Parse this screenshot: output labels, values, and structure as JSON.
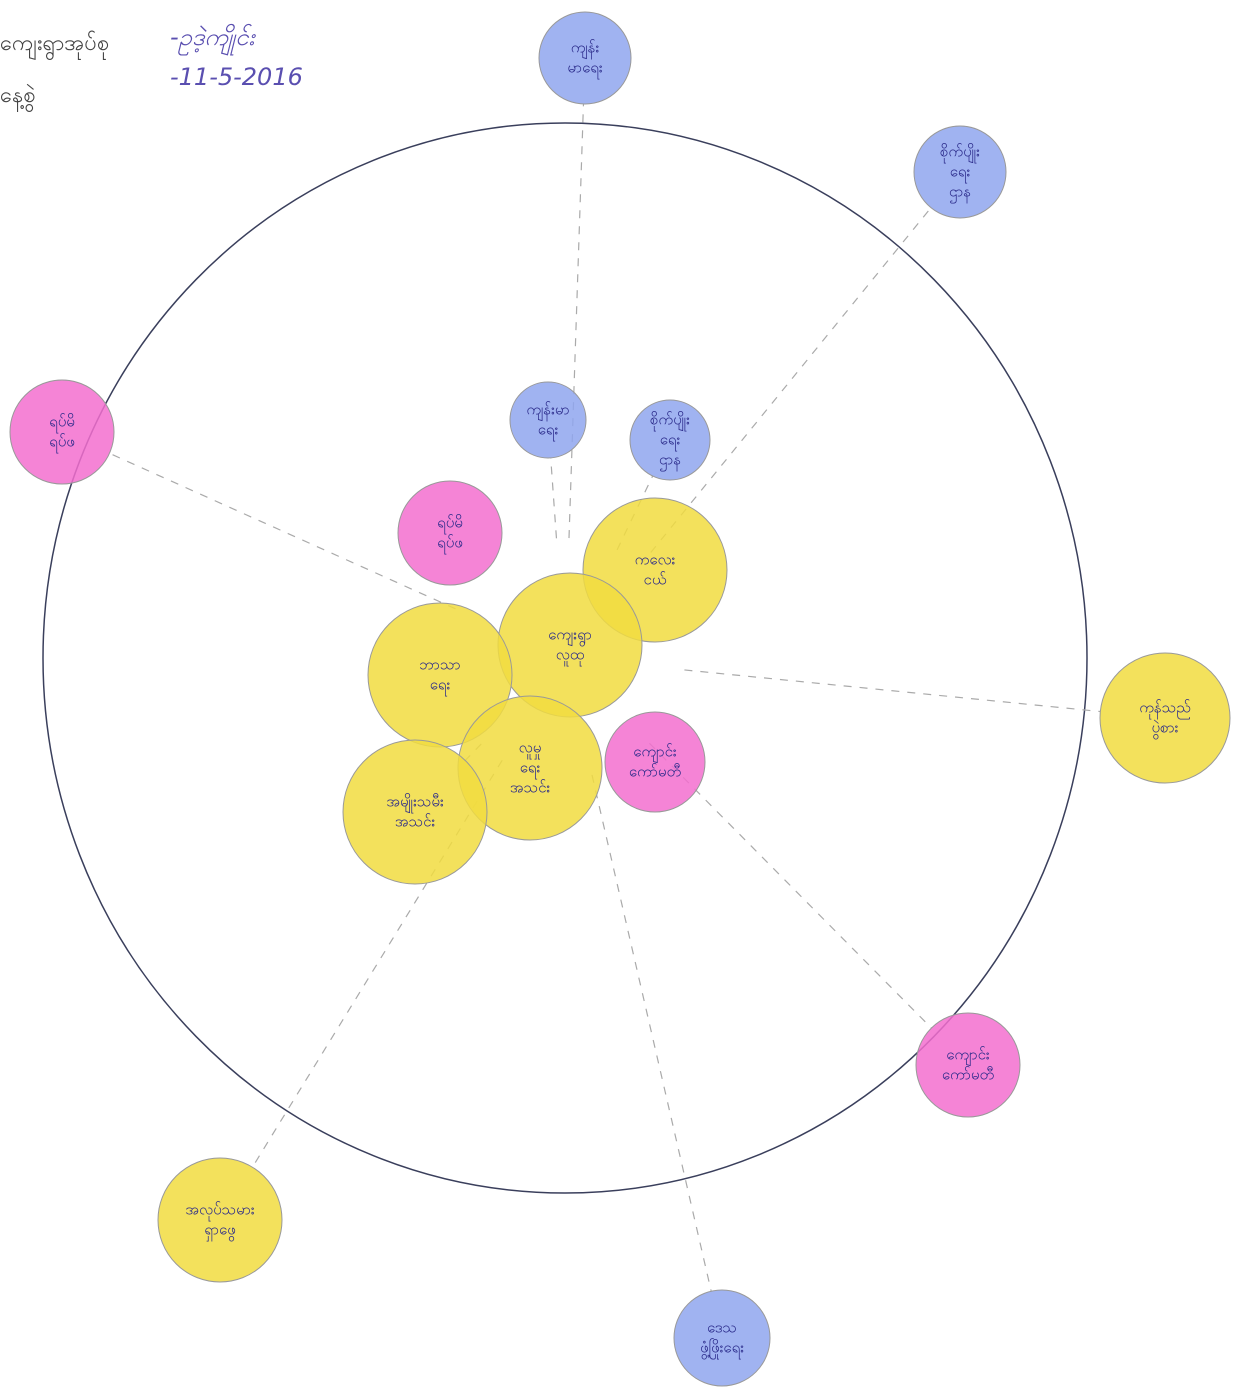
{
  "header": {
    "village_tract_label": "ကျေးရွာအုပ်စု",
    "village_tract_value": "-ဥဒဲ့ကျိုင်း",
    "date_label": "နေ့စွဲ",
    "date_value": "-11-5-2016"
  },
  "nodes": [
    {
      "label": "ကျန်း မာရေး",
      "color": "blue"
    },
    {
      "label": "စိုက်ပျိုး ရေး ဌာန",
      "color": "blue"
    },
    {
      "label": "ရပ်မိ ရပ်ဖ",
      "color": "pink"
    },
    {
      "label": "ကျန်းမာ ရေး",
      "color": "blue"
    },
    {
      "label": "စိုက်ပျိုး ရေး ဌာန",
      "color": "blue"
    },
    {
      "label": "ရပ်မိ ရပ်ဖ",
      "color": "pink"
    },
    {
      "label": "ကလေး ငယ်",
      "color": "yellow"
    },
    {
      "label": "ကျေးရွာ လူထု",
      "color": "yellow"
    },
    {
      "label": "ဘာသာ ရေး",
      "color": "yellow"
    },
    {
      "label": "လူမှု ရေး အသင်း",
      "color": "yellow"
    },
    {
      "label": "ကျောင်း ကော်မတီ",
      "color": "pink"
    },
    {
      "label": "အမျိုးသမီး အသင်း",
      "color": "yellow"
    },
    {
      "label": "ကုန်သည် ပွဲစား",
      "color": "yellow"
    },
    {
      "label": "ကျောင်း ကော်မတီ",
      "color": "pink"
    },
    {
      "label": "အလုပ်သမား ရှာဖွေ",
      "color": "yellow"
    },
    {
      "label": "ဒေသ ဖွံ့ဖြိုးရေး",
      "color": "blue"
    }
  ]
}
